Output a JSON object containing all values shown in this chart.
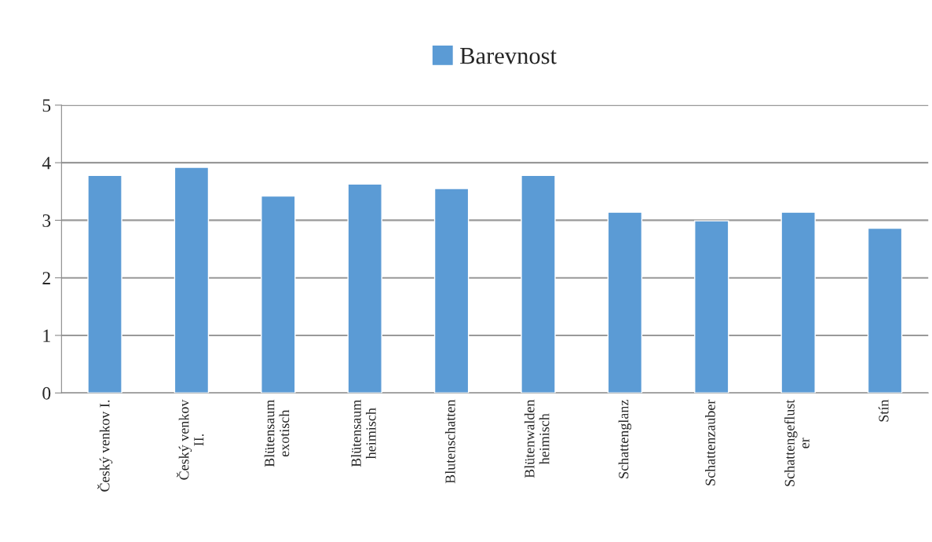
{
  "chart_data": {
    "type": "bar",
    "categories": [
      "Český venkov I.",
      "Český venkov\nII.",
      "Blütensaum\nexotisch",
      "Blütensaum\nheimisch",
      "Blutenschatten",
      "Blütenwalden\nheimisch",
      "Schattenglanz",
      "Schattenzauber",
      "Schattengeflust\ner",
      "Stín"
    ],
    "series": [
      {
        "name": "Barevnost",
        "color": "#5b9bd5",
        "values": [
          3.78,
          3.92,
          3.42,
          3.63,
          3.55,
          3.78,
          3.14,
          2.99,
          3.14,
          2.86
        ]
      }
    ],
    "ylim": [
      0,
      5
    ],
    "yticks": [
      0,
      1,
      2,
      3,
      4,
      5
    ],
    "grid": "y",
    "legend": "top"
  }
}
